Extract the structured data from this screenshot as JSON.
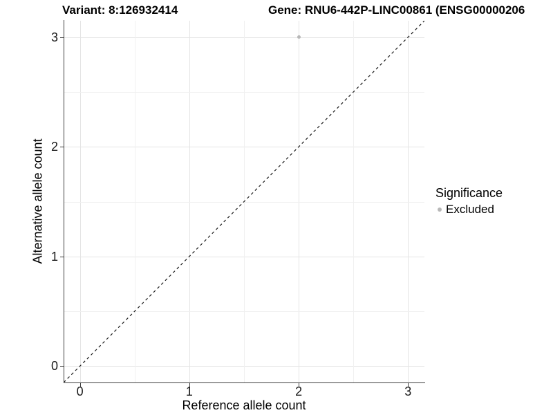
{
  "title": {
    "variant": "Variant: 8:126932414",
    "gene": "Gene: RNU6-442P-LINC00861 (ENSG00000206"
  },
  "chart_data": {
    "type": "scatter",
    "title": "Variant: 8:126932414  /  Gene: RNU6-442P-LINC00861 (ENSG00000206...)",
    "xlabel": "Reference allele count",
    "ylabel": "Alternative allele count",
    "x_ticks": [
      0,
      1,
      2,
      3
    ],
    "y_ticks": [
      0,
      1,
      2,
      3
    ],
    "xlim": [
      -0.15,
      3.15
    ],
    "ylim": [
      -0.15,
      3.15
    ],
    "grid": "major and minor gridlines, white panel background",
    "points": [
      {
        "x": 2,
        "y": 3,
        "series": "Excluded"
      }
    ],
    "reference_line": {
      "kind": "identity",
      "slope": 1,
      "intercept": 0,
      "linetype": "dashed",
      "color": "#1a1a1a"
    },
    "legend": {
      "title": "Significance",
      "position": "right",
      "items": [
        {
          "label": "Excluded",
          "color": "#b8b8b8",
          "marker": "circle"
        }
      ]
    },
    "colors": {
      "point": "#b8b8b8",
      "grid_major": "#e4e4e4",
      "grid_minor": "#f0f0f0",
      "axis_line": "#3c3c3c",
      "text": "#1a1a1a"
    }
  }
}
